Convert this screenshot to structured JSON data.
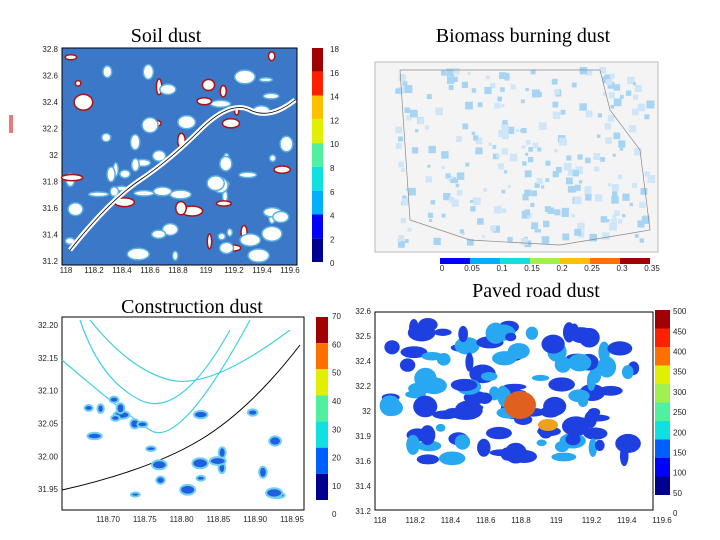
{
  "panels": [
    {
      "title": "Soil dust",
      "lat_ticks": [
        "32.8",
        "32.6",
        "32.4",
        "32.2",
        "32",
        "31.8",
        "31.6",
        "31.4",
        "31.2"
      ],
      "lon_ticks": [
        "118",
        "118.2",
        "118.4",
        "118.6",
        "118.8",
        "119",
        "119.2",
        "119.4",
        "119.6"
      ],
      "colorbar_ticks": [
        "18",
        "16",
        "14",
        "12",
        "10",
        "8",
        "6",
        "4",
        "2",
        "0"
      ]
    },
    {
      "title": "Biomass burning dust",
      "colorbar_ticks": [
        "0",
        "0.05",
        "0.1",
        "0.15",
        "0.2",
        "0.25",
        "0.3",
        "0.35"
      ]
    },
    {
      "title": "Construction dust",
      "lat_ticks": [
        "32.20",
        "32.15",
        "32.10",
        "32.05",
        "32.00",
        "31.95"
      ],
      "lon_ticks": [
        "118.70",
        "118.75",
        "118.80",
        "118.85",
        "118.90",
        "118.95"
      ],
      "colorbar_ticks": [
        "70",
        "60",
        "50",
        "40",
        "30",
        "20",
        "10",
        "0"
      ]
    },
    {
      "title": "Paved road dust",
      "lat_ticks": [
        "32.6",
        "32.5",
        "32.4",
        "32.2",
        "32",
        "31.9",
        "31.6",
        "31.4",
        "31.2"
      ],
      "lon_ticks": [
        "118",
        "118.2",
        "118.4",
        "118.6",
        "118.8",
        "119",
        "119.2",
        "119.4",
        "119.6"
      ],
      "colorbar_ticks": [
        "500",
        "450",
        "400",
        "350",
        "300",
        "250",
        "200",
        "150",
        "100",
        "50",
        "0"
      ]
    }
  ]
}
